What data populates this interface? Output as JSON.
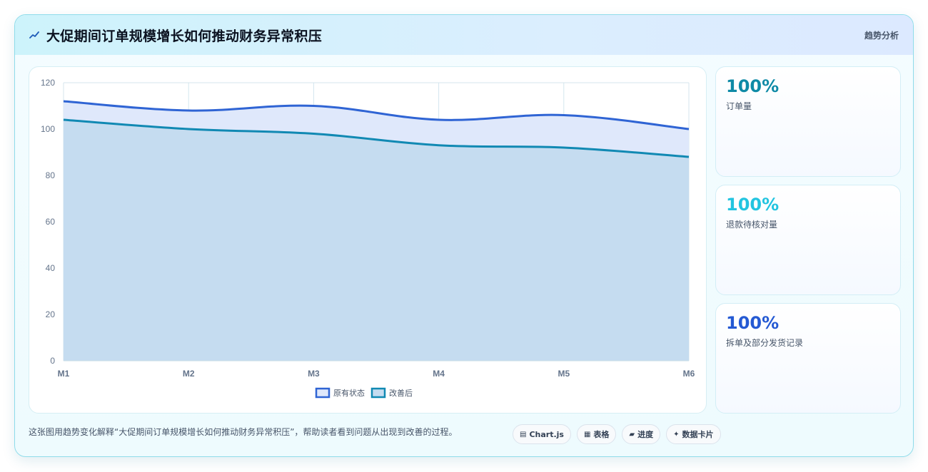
{
  "header": {
    "title": "大促期间订单规模增长如何推动财务异常积压",
    "tag": "趋势分析",
    "icon": "trend-icon"
  },
  "chart_data": {
    "type": "area",
    "categories": [
      "M1",
      "M2",
      "M3",
      "M4",
      "M5",
      "M6"
    ],
    "ylim": [
      0,
      120
    ],
    "yticks": [
      0,
      20,
      40,
      60,
      80,
      100,
      120
    ],
    "grid": true,
    "legend_position": "bottom",
    "series": [
      {
        "name": "原有状态",
        "values": [
          112,
          108,
          110,
          104,
          106,
          100
        ],
        "color": "#2f64d4",
        "fill": "#dfe8fb"
      },
      {
        "name": "改善后",
        "values": [
          104,
          100,
          98,
          93,
          92,
          88
        ],
        "color": "#1189b3",
        "fill": "#c5dcf0"
      }
    ]
  },
  "kpis": [
    {
      "value": "100%",
      "label": "订单量",
      "color": "#0e8aa6"
    },
    {
      "value": "100%",
      "label": "退款待核对量",
      "color": "#22c4e0"
    },
    {
      "value": "100%",
      "label": "拆单及部分发货记录",
      "color": "#2459d3"
    }
  ],
  "footer": {
    "description": "这张图用趋势变化解释“大促期间订单规模增长如何推动财务异常积压”，帮助读者看到问题从出现到改善的过程。",
    "chips": [
      {
        "icon": "▤",
        "label": "Chart.js"
      },
      {
        "icon": "▦",
        "label": "表格"
      },
      {
        "icon": "▰",
        "label": "进度"
      },
      {
        "icon": "✦",
        "label": "数据卡片"
      }
    ]
  }
}
